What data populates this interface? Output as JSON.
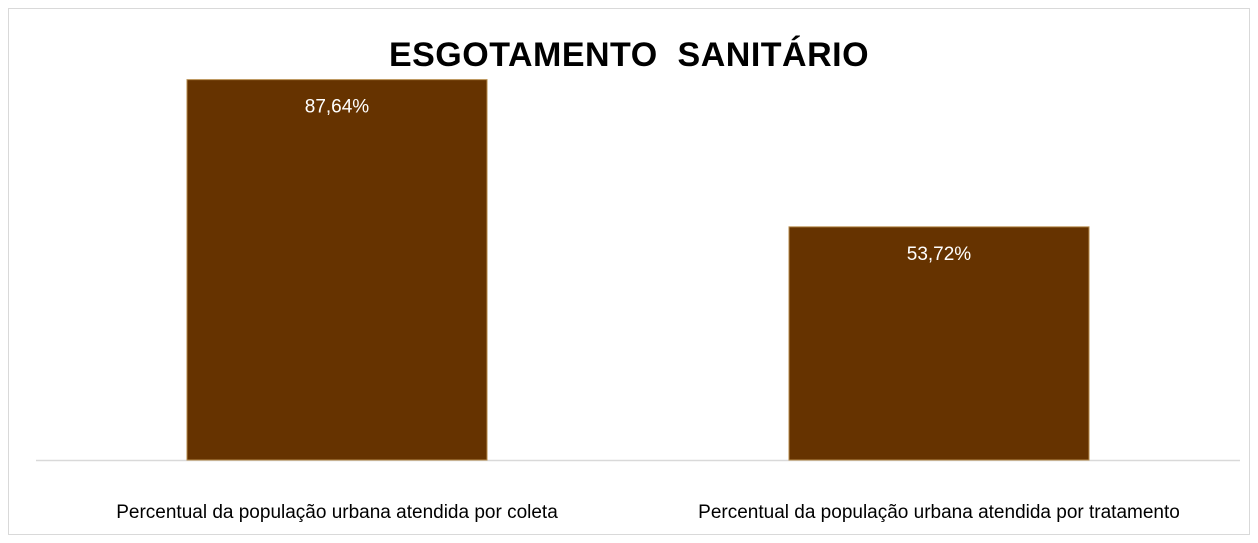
{
  "chart_data": {
    "type": "bar",
    "title": "ESGOTAMENTO  SANITÁRIO",
    "categories": [
      "Percentual da população urbana atendida por coleta",
      "Percentual da população urbana atendida por tratamento"
    ],
    "values": [
      87.64,
      53.72
    ],
    "data_labels": [
      "87,64%",
      "53,72%"
    ],
    "xlabel": "",
    "ylabel": "",
    "ylim": [
      0,
      100
    ],
    "grid": false,
    "legend": "none",
    "colors": {
      "bar": "#663300",
      "bar_border": "#b58a4a",
      "data_label": "#ffffff",
      "axis": "#d9d9d9"
    }
  }
}
